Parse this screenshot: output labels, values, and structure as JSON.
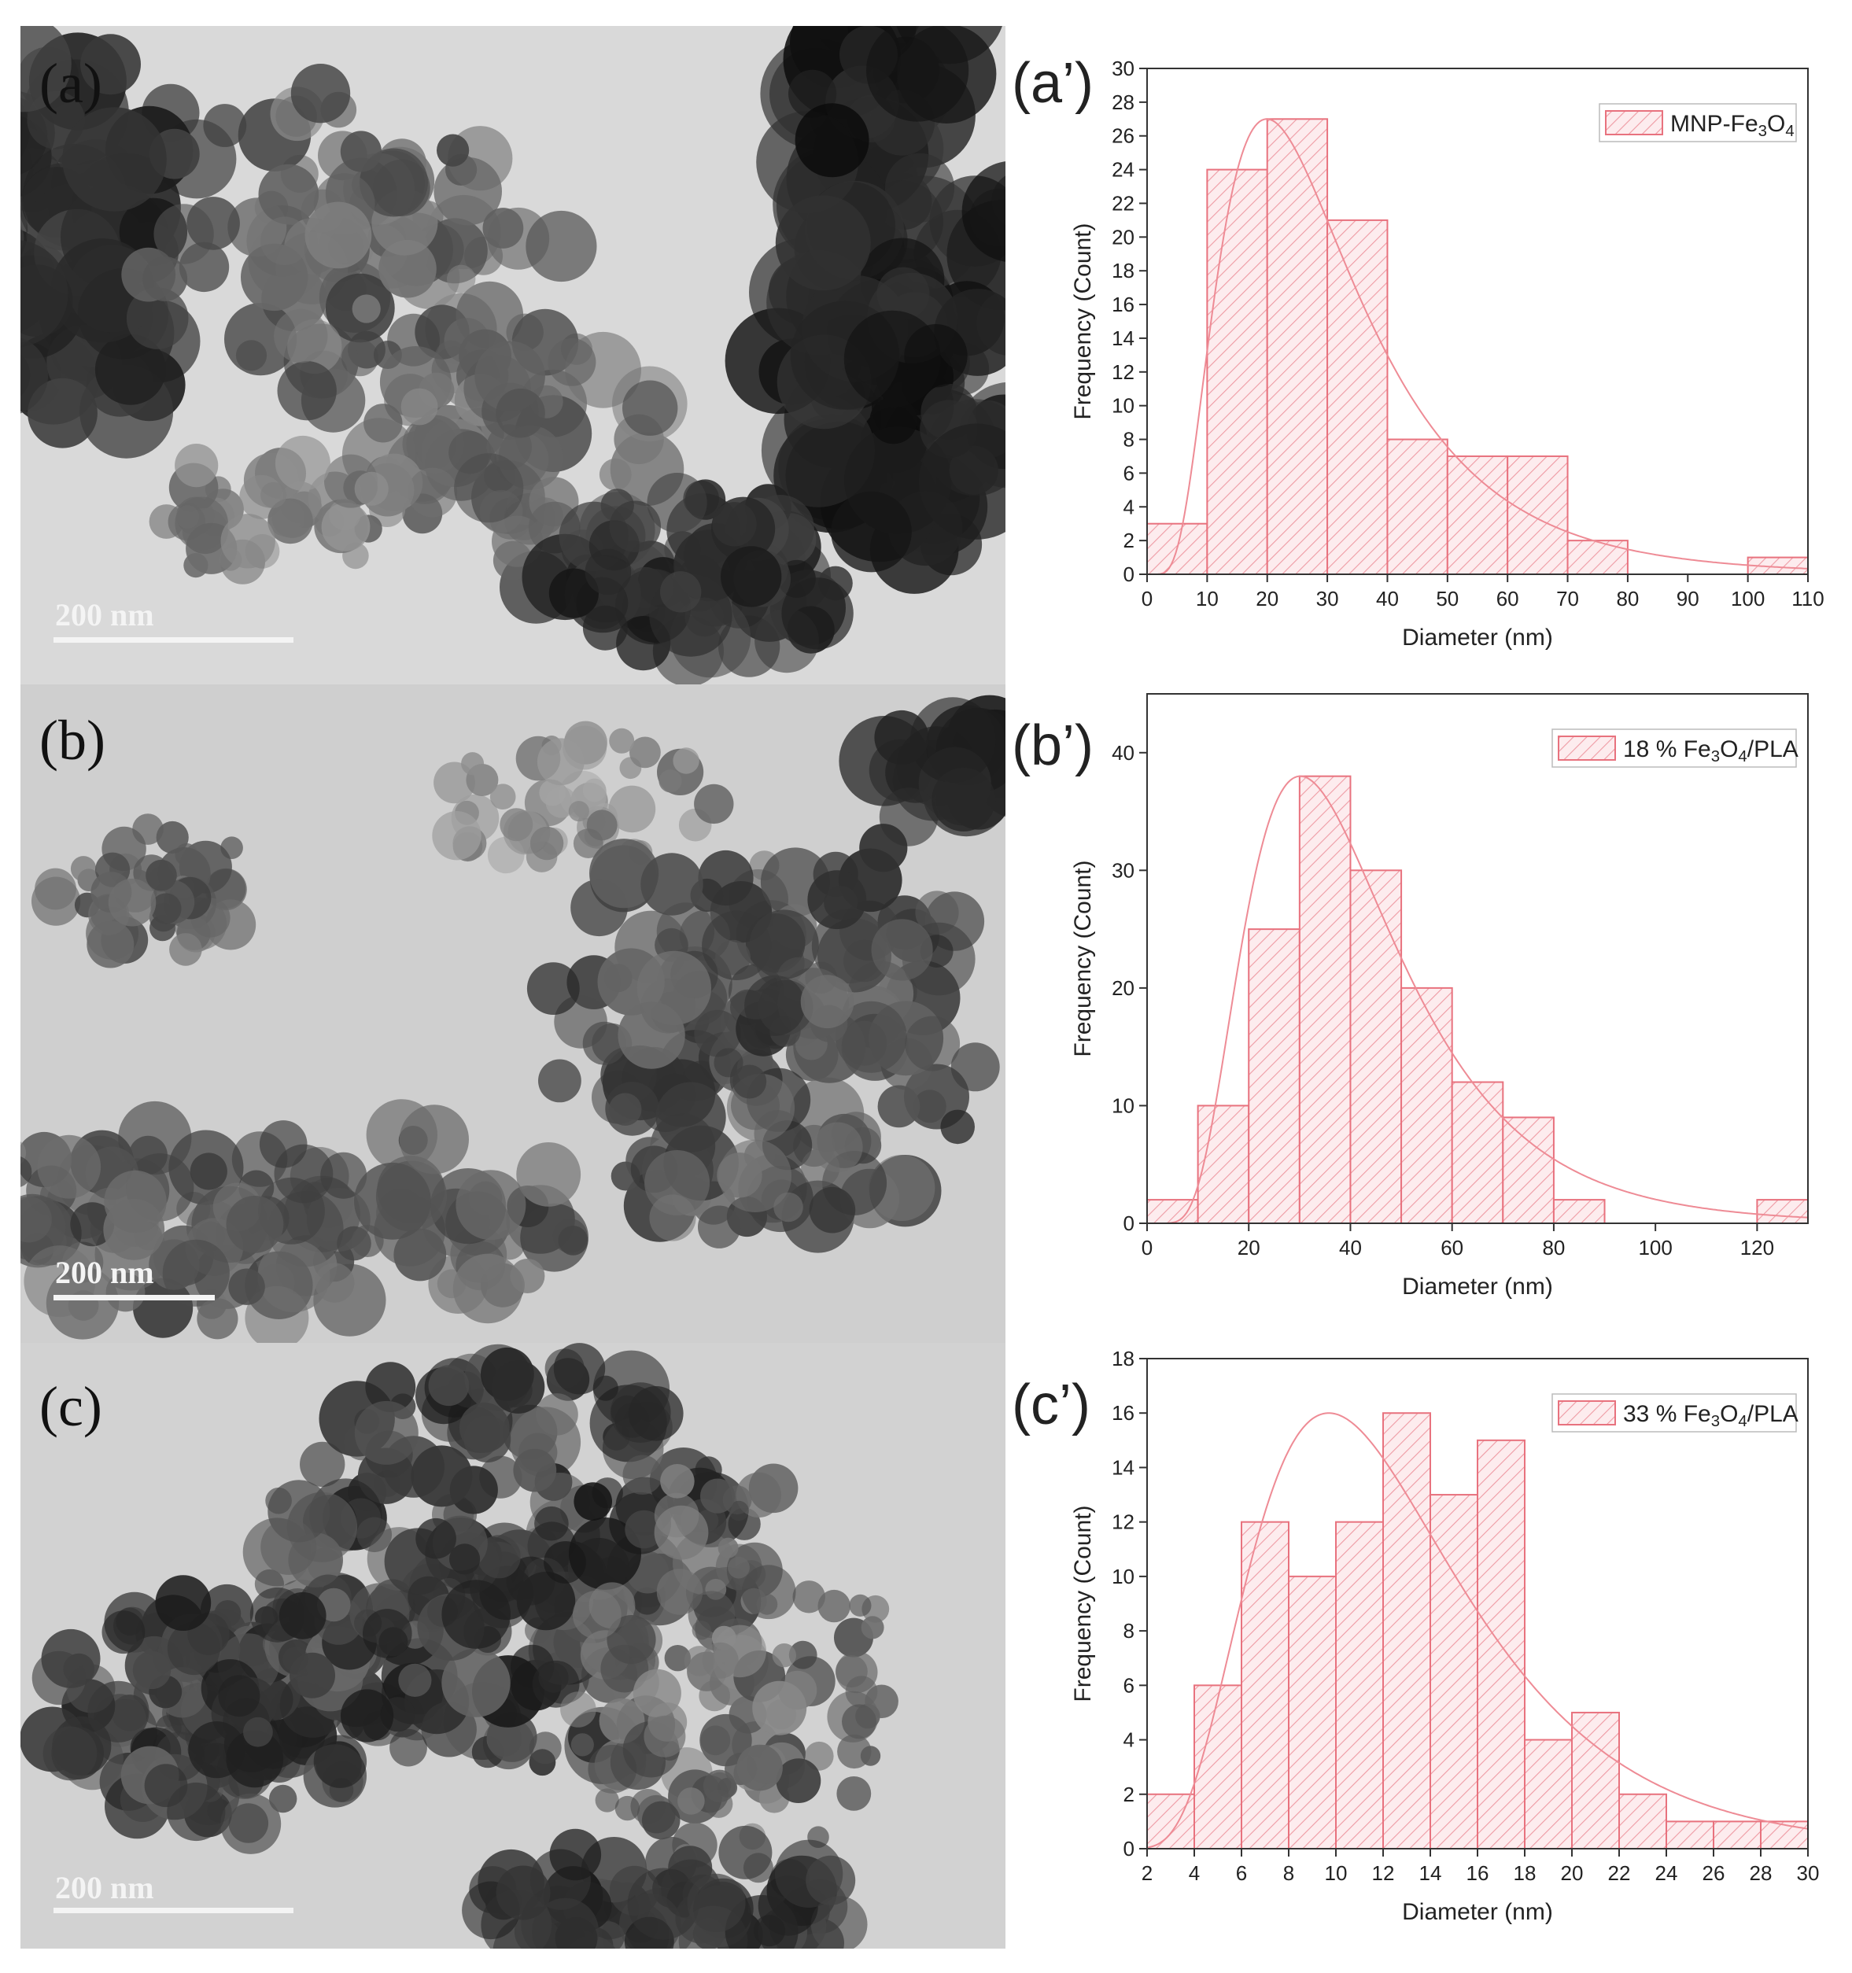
{
  "figure": {
    "panels": [
      {
        "label": "(a)",
        "scale_bar": "200 nm"
      },
      {
        "label": "(b)",
        "scale_bar": "200 nm"
      },
      {
        "label": "(c)",
        "scale_bar": "200 nm"
      }
    ]
  },
  "colors": {
    "bar_stroke": "#e8727e",
    "bar_fill": "#fdecee",
    "hatch": "#ee9aa3",
    "fit_line": "#ee8b95",
    "axis": "#333333"
  },
  "chart_data": [
    {
      "type": "bar",
      "panel_label": "(a’)",
      "legend": "MNP-Fe3O4",
      "legend_position": "top-right",
      "xlabel": "Diameter (nm)",
      "ylabel": "Frequency (Count)",
      "xlim": [
        0,
        110
      ],
      "ylim": [
        0,
        30
      ],
      "xticks": [
        0,
        10,
        20,
        30,
        40,
        50,
        60,
        70,
        80,
        90,
        100,
        110
      ],
      "yticks": [
        0,
        2,
        4,
        6,
        8,
        10,
        12,
        14,
        16,
        18,
        20,
        22,
        24,
        26,
        28,
        30
      ],
      "bins": [
        [
          0,
          10
        ],
        [
          10,
          20
        ],
        [
          20,
          30
        ],
        [
          30,
          40
        ],
        [
          40,
          50
        ],
        [
          50,
          60
        ],
        [
          60,
          70
        ],
        [
          70,
          80
        ],
        [
          80,
          90
        ],
        [
          90,
          100
        ],
        [
          100,
          110
        ]
      ],
      "values": [
        3,
        24,
        27,
        21,
        8,
        7,
        7,
        2,
        0,
        0,
        1
      ],
      "fit_curve": "lognormal",
      "grid": false
    },
    {
      "type": "bar",
      "panel_label": "(b’)",
      "legend": "18 % Fe3O4/PLA",
      "legend_position": "top-right",
      "xlabel": "Diameter (nm)",
      "ylabel": "Frequency (Count)",
      "xlim": [
        0,
        130
      ],
      "ylim": [
        0,
        45
      ],
      "xticks": [
        0,
        20,
        40,
        60,
        80,
        100,
        120
      ],
      "yticks": [
        0,
        10,
        20,
        30,
        40
      ],
      "bins": [
        [
          0,
          10
        ],
        [
          10,
          20
        ],
        [
          20,
          30
        ],
        [
          30,
          40
        ],
        [
          40,
          50
        ],
        [
          50,
          60
        ],
        [
          60,
          70
        ],
        [
          70,
          80
        ],
        [
          80,
          90
        ],
        [
          90,
          100
        ],
        [
          100,
          110
        ],
        [
          110,
          120
        ],
        [
          120,
          130
        ]
      ],
      "values": [
        2,
        10,
        25,
        38,
        30,
        20,
        12,
        9,
        2,
        0,
        0,
        0,
        2
      ],
      "fit_curve": "lognormal",
      "grid": false
    },
    {
      "type": "bar",
      "panel_label": "(c’)",
      "legend": "33 % Fe3O4/PLA",
      "legend_position": "top-right",
      "xlabel": "Diameter (nm)",
      "ylabel": "Frequency (Count)",
      "xlim": [
        2,
        30
      ],
      "ylim": [
        0,
        18
      ],
      "xticks": [
        2,
        4,
        6,
        8,
        10,
        12,
        14,
        16,
        18,
        20,
        22,
        24,
        26,
        28,
        30
      ],
      "yticks": [
        0,
        2,
        4,
        6,
        8,
        10,
        12,
        14,
        16,
        18
      ],
      "bins": [
        [
          2,
          4
        ],
        [
          4,
          6
        ],
        [
          6,
          8
        ],
        [
          8,
          10
        ],
        [
          10,
          12
        ],
        [
          12,
          14
        ],
        [
          14,
          16
        ],
        [
          16,
          18
        ],
        [
          18,
          20
        ],
        [
          20,
          22
        ],
        [
          22,
          24
        ],
        [
          24,
          26
        ],
        [
          26,
          28
        ],
        [
          28,
          30
        ]
      ],
      "values": [
        2,
        6,
        12,
        10,
        12,
        16,
        13,
        15,
        4,
        5,
        2,
        1,
        1,
        1
      ],
      "fit_curve": "lognormal",
      "grid": false
    }
  ]
}
